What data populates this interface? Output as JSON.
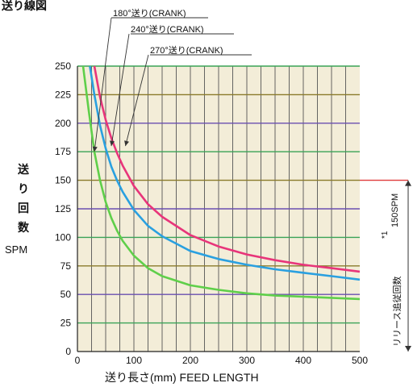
{
  "title": "送り線図",
  "annotations": {
    "a180": "180°送り(CRANK)",
    "a240": "240°送り(CRANK)",
    "a270": "270°送り(CRANK)"
  },
  "y_label_vertical": [
    "送",
    "り",
    "回",
    "数"
  ],
  "y_unit": "SPM",
  "x_label": "送り長さ(mm) FEED LENGTH",
  "release": {
    "label": "リリース追従回数",
    "note": "*1",
    "value_label": "150SPM",
    "value": 150,
    "color": "#e03a3a"
  },
  "chart_data": {
    "type": "line",
    "xlabel": "送り長さ(mm) FEED LENGTH",
    "ylabel": "送り回数 SPM",
    "xlim": [
      0,
      500
    ],
    "ylim": [
      0,
      250
    ],
    "x_ticks": [
      0,
      100,
      200,
      300,
      400,
      500
    ],
    "y_ticks": [
      0,
      25,
      50,
      75,
      100,
      125,
      150,
      175,
      200,
      225,
      250
    ],
    "grid": true,
    "grid_colors": {
      "horizontal": [
        "#3aa356",
        "#6a4fb0",
        "#8a7a2a",
        "#3aa356",
        "#6a4fb0",
        "#8a7a2a",
        "#3aa356",
        "#6a4fb0",
        "#8a7a2a",
        "#3aa356"
      ],
      "vertical": "#555555",
      "background": "#f3edd8"
    },
    "series": [
      {
        "name": "180°送り(CRANK)",
        "color": "#5fcf4a",
        "x": [
          10,
          20,
          30,
          40,
          50,
          60,
          70,
          80,
          100,
          125,
          150,
          200,
          250,
          300,
          350,
          400,
          450,
          500
        ],
        "y": [
          250,
          211,
          175,
          150,
          131,
          117,
          106,
          97,
          84,
          73,
          66,
          58,
          54,
          51,
          49,
          48,
          47,
          46
        ]
      },
      {
        "name": "240°送り(CRANK)",
        "color": "#2aa0e0",
        "x": [
          22,
          30,
          40,
          50,
          60,
          70,
          80,
          100,
          125,
          150,
          200,
          250,
          300,
          350,
          400,
          450,
          500
        ],
        "y": [
          250,
          225,
          198,
          178,
          162,
          150,
          140,
          124,
          110,
          101,
          88,
          81,
          76,
          72,
          69,
          66,
          63
        ]
      },
      {
        "name": "270°送り(CRANK)",
        "color": "#e8357a",
        "x": [
          30,
          40,
          50,
          60,
          70,
          80,
          100,
          125,
          150,
          200,
          250,
          300,
          350,
          400,
          450,
          500
        ],
        "y": [
          250,
          223,
          203,
          187,
          174,
          163,
          145,
          129,
          118,
          102,
          92,
          85,
          80,
          76,
          73,
          70
        ]
      }
    ]
  }
}
